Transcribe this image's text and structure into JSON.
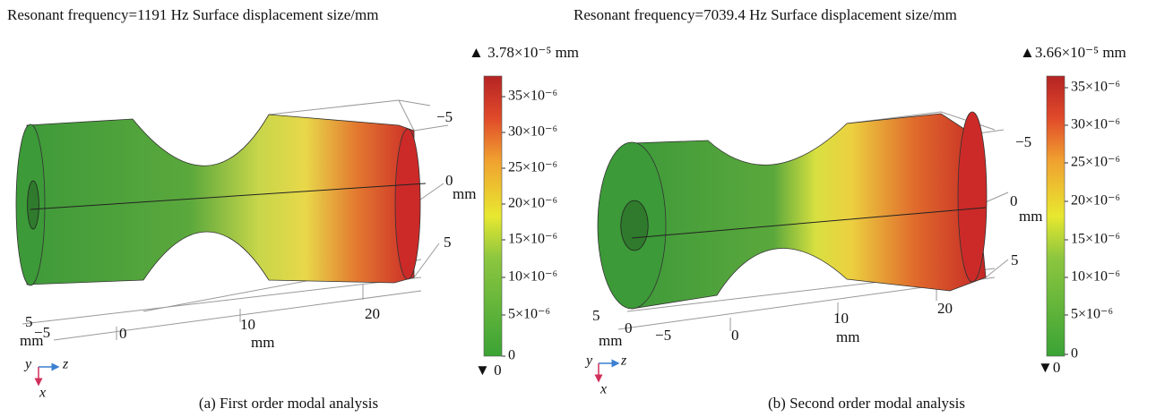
{
  "panels": [
    {
      "title": "Resonant frequency=1191 Hz Surface displacement size/mm",
      "max_label": "▲ 3.78×10⁻⁵ mm",
      "min_label": "▼ 0",
      "colorbar_ticks": [
        "35×10⁻⁶",
        "30×10⁻⁶",
        "25×10⁻⁶",
        "20×10⁻⁶",
        "15×10⁻⁶",
        "10×10⁻⁶",
        "5×10⁻⁶",
        "0"
      ],
      "axis_labels": [
        "−5",
        "0",
        "mm",
        "5",
        "5",
        "mm",
        "−5",
        "0",
        "10",
        "mm",
        "20"
      ],
      "triad": [
        "y",
        "z",
        "x"
      ],
      "caption": "(a) First order modal analysis"
    },
    {
      "title": "Resonant frequency=7039.4 Hz Surface displacement size/mm",
      "max_label": "▲3.66×10⁻⁵ mm",
      "min_label": "▼0",
      "colorbar_ticks": [
        "35×10⁻⁶",
        "30×10⁻⁶",
        "25×10⁻⁶",
        "20×10⁻⁶",
        "15×10⁻⁶",
        "10×10⁻⁶",
        "5×10⁻⁶",
        "0"
      ],
      "axis_labels": [
        "−5",
        "0",
        "mm",
        "5",
        "5",
        "mm",
        "0",
        "−5",
        "0",
        "10",
        "mm",
        "20"
      ],
      "triad": [
        "y",
        "z",
        "x"
      ],
      "caption": "(b) Second order modal analysis"
    }
  ]
}
